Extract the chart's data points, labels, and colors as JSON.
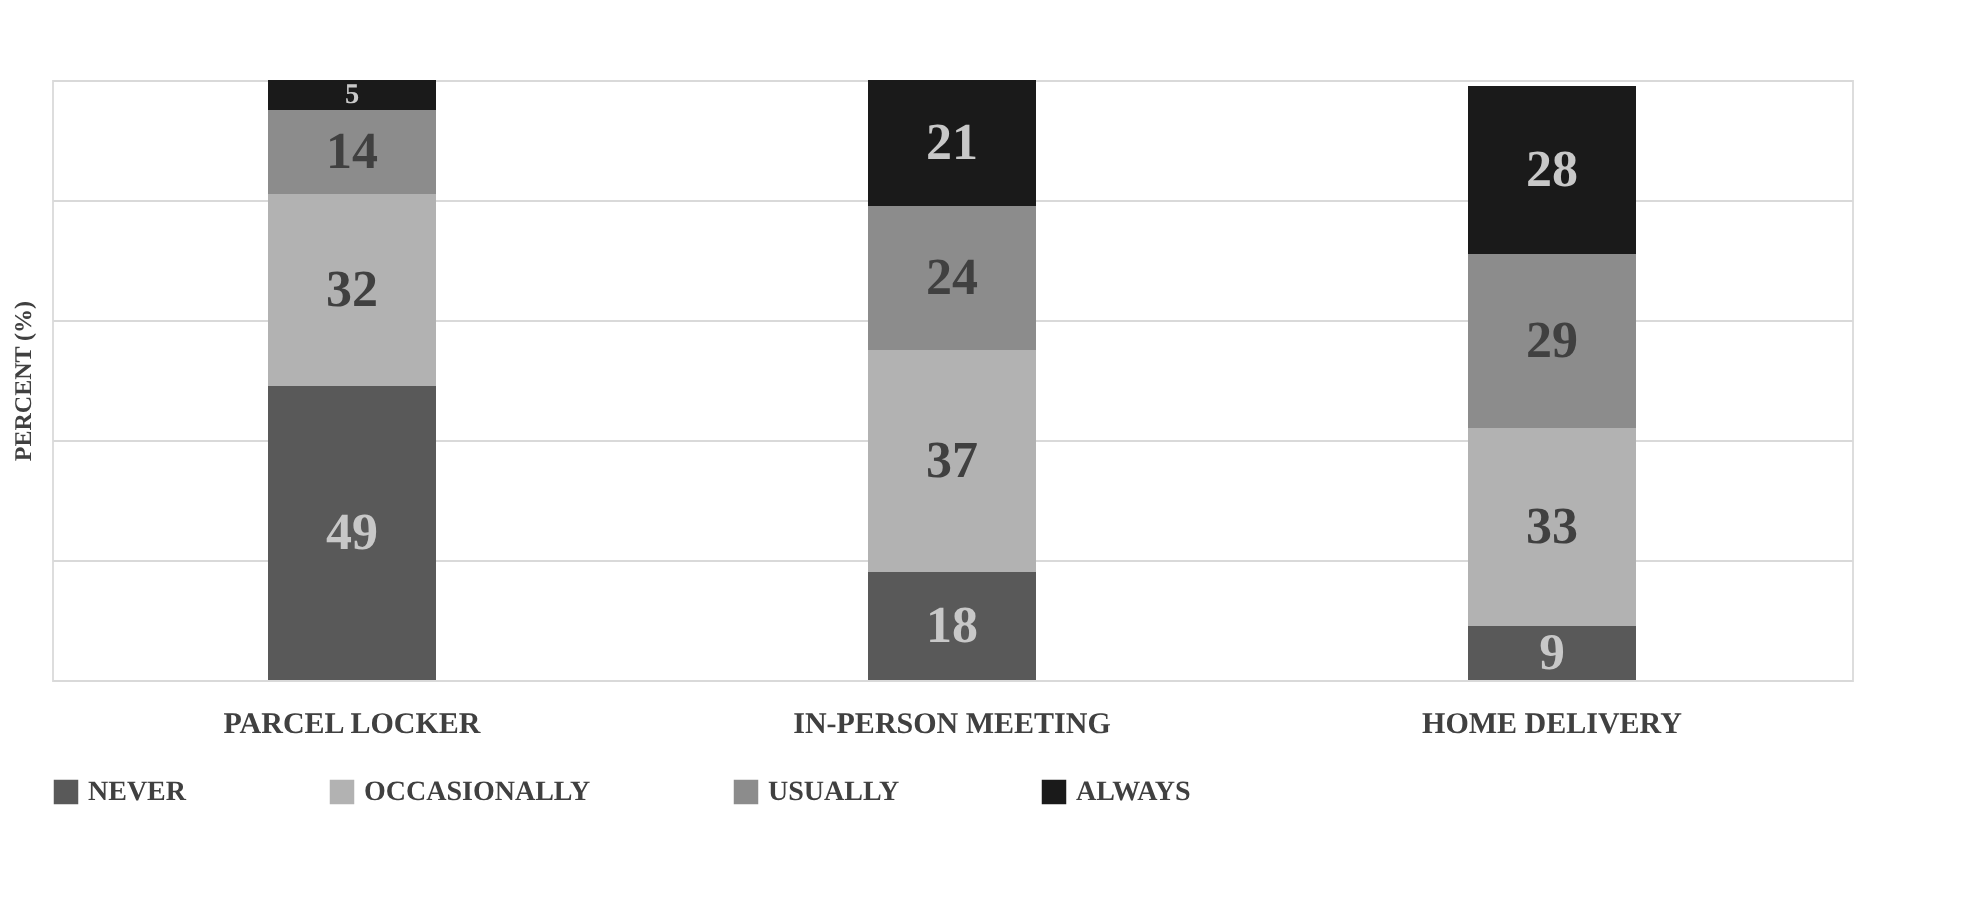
{
  "chart_data": {
    "type": "bar",
    "stacked": true,
    "ylabel": "PERCENT (%)",
    "categories": [
      "PARCEL LOCKER",
      "IN-PERSON MEETING",
      "HOME DELIVERY"
    ],
    "series": [
      {
        "name": "NEVER",
        "color": "#595959",
        "values": [
          49,
          18,
          9
        ]
      },
      {
        "name": "OCCASIONALLY",
        "color": "#b2b2b2",
        "values": [
          32,
          37,
          33
        ]
      },
      {
        "name": "USUALLY",
        "color": "#8c8c8c",
        "values": [
          14,
          24,
          29
        ]
      },
      {
        "name": "ALWAYS",
        "color": "#1a1a1a",
        "values": [
          5,
          21,
          28
        ]
      }
    ],
    "ylim": [
      0,
      100
    ],
    "yticks": [
      {
        "value": 0,
        "label": null
      },
      {
        "value": 20,
        "label": null
      },
      {
        "value": 40,
        "label": null
      },
      {
        "value": 60,
        "label": null
      },
      {
        "value": 80,
        "label": null
      },
      {
        "value": 100,
        "label": null
      }
    ],
    "tick_labels": "x",
    "grid": "y",
    "legend": "bottom",
    "data_labels": true
  }
}
